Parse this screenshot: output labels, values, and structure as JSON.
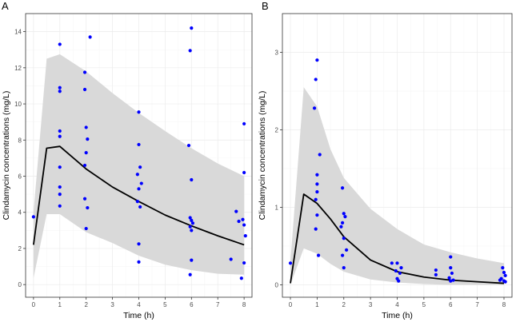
{
  "chart_data": [
    {
      "panel": "A",
      "type": "scatter",
      "xlabel": "Time (h)",
      "ylabel": "Clindamycin concentrations (mg/L)",
      "xlim": [
        -0.3,
        8.3
      ],
      "ylim": [
        -0.7,
        15.0
      ],
      "xticks": [
        0,
        1,
        2,
        3,
        4,
        5,
        6,
        7,
        8
      ],
      "yticks": [
        0,
        2,
        4,
        6,
        8,
        10,
        12,
        14
      ],
      "colors": {
        "points": "#0000ff",
        "median_line": "#000000",
        "band": "#d9d9d9"
      },
      "points": [
        [
          0.0,
          3.75
        ],
        [
          1.0,
          13.3
        ],
        [
          1.0,
          10.9
        ],
        [
          1.0,
          10.7
        ],
        [
          1.0,
          8.5
        ],
        [
          1.0,
          8.2
        ],
        [
          1.0,
          6.5
        ],
        [
          1.0,
          5.4
        ],
        [
          1.0,
          5.0
        ],
        [
          1.0,
          4.35
        ],
        [
          1.95,
          11.75
        ],
        [
          1.95,
          10.8
        ],
        [
          2.0,
          8.7
        ],
        [
          2.05,
          8.05
        ],
        [
          2.0,
          7.3
        ],
        [
          1.95,
          6.6
        ],
        [
          1.95,
          4.75
        ],
        [
          2.05,
          4.25
        ],
        [
          2.0,
          3.1
        ],
        [
          2.15,
          13.7
        ],
        [
          4.0,
          9.55
        ],
        [
          4.0,
          7.75
        ],
        [
          3.95,
          6.1
        ],
        [
          4.05,
          6.5
        ],
        [
          4.0,
          5.3
        ],
        [
          4.1,
          5.6
        ],
        [
          3.95,
          4.6
        ],
        [
          4.05,
          4.3
        ],
        [
          4.0,
          2.25
        ],
        [
          4.0,
          1.25
        ],
        [
          6.0,
          14.2
        ],
        [
          5.95,
          12.95
        ],
        [
          5.9,
          7.7
        ],
        [
          6.0,
          5.8
        ],
        [
          5.95,
          3.7
        ],
        [
          6.0,
          3.55
        ],
        [
          6.05,
          3.4
        ],
        [
          5.95,
          3.2
        ],
        [
          6.0,
          3.0
        ],
        [
          6.0,
          1.35
        ],
        [
          5.95,
          0.55
        ],
        [
          7.7,
          4.05
        ],
        [
          7.8,
          3.5
        ],
        [
          8.0,
          8.9
        ],
        [
          8.0,
          6.2
        ],
        [
          7.95,
          3.6
        ],
        [
          8.0,
          3.3
        ],
        [
          8.05,
          2.7
        ],
        [
          8.0,
          1.2
        ],
        [
          7.9,
          0.35
        ],
        [
          7.5,
          1.4
        ]
      ],
      "median": {
        "x": [
          0,
          0.5,
          1,
          2,
          3,
          4,
          5,
          6,
          7,
          8
        ],
        "y": [
          2.2,
          7.55,
          7.65,
          6.4,
          5.4,
          4.6,
          3.85,
          3.25,
          2.7,
          2.2
        ]
      },
      "band": {
        "x": [
          0,
          0.5,
          1,
          2,
          3,
          4,
          5,
          6,
          7,
          8
        ],
        "lower": [
          0.35,
          3.9,
          3.9,
          2.9,
          2.3,
          1.6,
          1.1,
          0.8,
          0.6,
          0.55
        ],
        "upper": [
          4.0,
          12.5,
          12.75,
          11.8,
          10.6,
          9.5,
          8.5,
          7.55,
          6.7,
          6.0
        ]
      }
    },
    {
      "panel": "B",
      "type": "scatter",
      "xlabel": "Time (h)",
      "ylabel": "Clindamycin concentrations (mg/L)",
      "xlim": [
        -0.3,
        8.3
      ],
      "ylim": [
        -0.16,
        3.5
      ],
      "xticks": [
        0,
        1,
        2,
        3,
        4,
        5,
        6,
        7,
        8
      ],
      "yticks": [
        0,
        1,
        2,
        3
      ],
      "colors": {
        "points": "#0000ff",
        "median_line": "#000000",
        "band": "#d9d9d9"
      },
      "points": [
        [
          0.0,
          0.28
        ],
        [
          1.0,
          2.9
        ],
        [
          0.95,
          2.65
        ],
        [
          0.9,
          2.28
        ],
        [
          1.1,
          1.68
        ],
        [
          1.0,
          1.42
        ],
        [
          1.0,
          1.3
        ],
        [
          1.0,
          1.2
        ],
        [
          0.95,
          1.1
        ],
        [
          1.0,
          0.9
        ],
        [
          0.95,
          0.72
        ],
        [
          1.05,
          0.38
        ],
        [
          1.95,
          1.25
        ],
        [
          2.0,
          0.92
        ],
        [
          1.95,
          0.8
        ],
        [
          2.05,
          0.88
        ],
        [
          2.0,
          0.6
        ],
        [
          2.1,
          0.45
        ],
        [
          1.95,
          0.38
        ],
        [
          2.0,
          0.22
        ],
        [
          1.9,
          0.75
        ],
        [
          3.8,
          0.28
        ],
        [
          4.0,
          0.28
        ],
        [
          4.15,
          0.22
        ],
        [
          3.95,
          0.18
        ],
        [
          4.1,
          0.15
        ],
        [
          4.0,
          0.08
        ],
        [
          4.05,
          0.05
        ],
        [
          5.45,
          0.19
        ],
        [
          5.45,
          0.13
        ],
        [
          6.0,
          0.36
        ],
        [
          6.0,
          0.22
        ],
        [
          6.05,
          0.15
        ],
        [
          5.95,
          0.09
        ],
        [
          6.0,
          0.05
        ],
        [
          6.1,
          0.06
        ],
        [
          7.95,
          0.22
        ],
        [
          8.0,
          0.16
        ],
        [
          8.05,
          0.12
        ],
        [
          7.9,
          0.08
        ],
        [
          8.0,
          0.05
        ],
        [
          7.85,
          0.06
        ],
        [
          8.05,
          0.04
        ]
      ],
      "median": {
        "x": [
          0,
          0.5,
          1,
          1.5,
          2,
          3,
          4,
          5,
          6,
          7,
          8
        ],
        "y": [
          0.02,
          1.17,
          1.05,
          0.85,
          0.62,
          0.32,
          0.17,
          0.1,
          0.06,
          0.04,
          0.02
        ]
      },
      "band": {
        "x": [
          0,
          0.5,
          1,
          1.5,
          2,
          3,
          4,
          5,
          6,
          7,
          8
        ],
        "lower": [
          0.0,
          0.47,
          0.4,
          0.27,
          0.17,
          0.07,
          0.03,
          0.01,
          0.0,
          0.0,
          0.0
        ],
        "upper": [
          0.3,
          2.55,
          2.3,
          1.75,
          1.38,
          0.98,
          0.72,
          0.52,
          0.42,
          0.34,
          0.28
        ]
      }
    }
  ]
}
